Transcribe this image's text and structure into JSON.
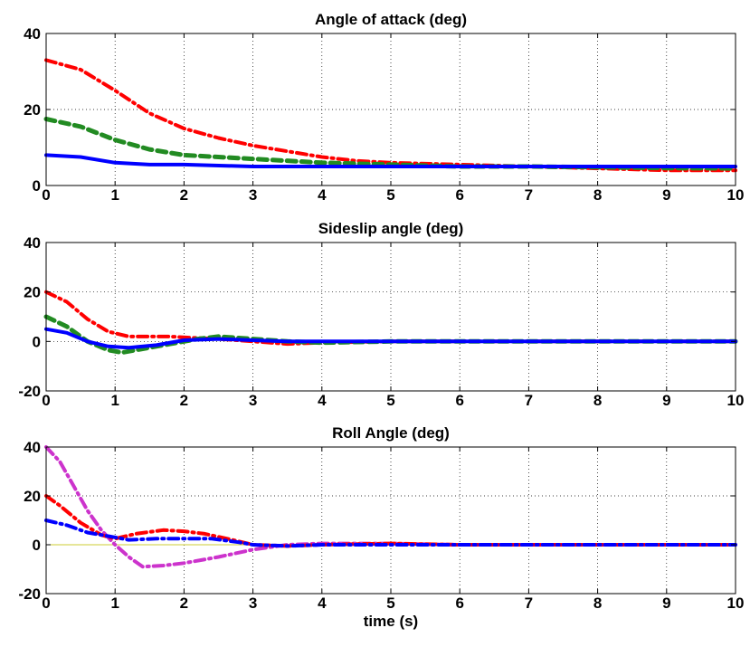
{
  "chart_data": [
    {
      "type": "line",
      "title": "Angle of attack (deg)",
      "xlabel": "",
      "ylabel": "",
      "xlim": [
        0,
        10
      ],
      "ylim": [
        0,
        40
      ],
      "xticks": [
        0,
        1,
        2,
        3,
        4,
        5,
        6,
        7,
        8,
        9,
        10
      ],
      "yticks": [
        0,
        20,
        40
      ],
      "grid": true,
      "series": [
        {
          "color": "#ff0000",
          "style": "dashdot",
          "x": [
            0,
            0.5,
            1,
            1.5,
            2,
            2.5,
            3,
            3.5,
            4,
            4.5,
            5,
            6,
            7,
            8,
            9,
            10
          ],
          "y": [
            33,
            30.5,
            25,
            19,
            15,
            12.5,
            10.5,
            9,
            7.5,
            6.5,
            6,
            5.5,
            5,
            4.5,
            4,
            4
          ]
        },
        {
          "color": "#228b22",
          "style": "dashed",
          "x": [
            0,
            0.5,
            1,
            1.5,
            2,
            2.5,
            3,
            4,
            5,
            6,
            7,
            8,
            9,
            10
          ],
          "y": [
            17.5,
            15.5,
            12,
            9.5,
            8,
            7.5,
            7,
            6,
            5.5,
            5,
            5,
            4.8,
            4.6,
            4.5
          ]
        },
        {
          "color": "#0000ff",
          "style": "solid",
          "x": [
            0,
            0.5,
            1,
            1.5,
            2,
            3,
            4,
            5,
            6,
            7,
            8,
            9,
            10
          ],
          "y": [
            8,
            7.5,
            6,
            5.5,
            5.5,
            5,
            5,
            5,
            5,
            5,
            5,
            5,
            5
          ]
        }
      ]
    },
    {
      "type": "line",
      "title": "Sideslip angle (deg)",
      "xlabel": "",
      "ylabel": "",
      "xlim": [
        0,
        10
      ],
      "ylim": [
        -20,
        40
      ],
      "xticks": [
        0,
        1,
        2,
        3,
        4,
        5,
        6,
        7,
        8,
        9,
        10
      ],
      "yticks": [
        -20,
        0,
        20,
        40
      ],
      "grid": true,
      "series": [
        {
          "color": "#ff0000",
          "style": "dashdot",
          "x": [
            0,
            0.3,
            0.6,
            0.9,
            1.2,
            1.5,
            1.8,
            2.1,
            2.5,
            3,
            3.5,
            4,
            5,
            6,
            7,
            8,
            9,
            10
          ],
          "y": [
            20,
            16,
            9,
            4,
            2,
            2,
            2,
            1.5,
            1,
            0,
            -1,
            -0.5,
            0,
            0,
            0,
            0,
            0,
            0
          ]
        },
        {
          "color": "#228b22",
          "style": "dashed",
          "x": [
            0,
            0.3,
            0.6,
            0.9,
            1.1,
            1.4,
            1.8,
            2.2,
            2.5,
            3,
            3.5,
            4,
            5,
            6,
            7,
            8,
            9,
            10
          ],
          "y": [
            10,
            6,
            0,
            -3.5,
            -4.5,
            -3,
            -1,
            1,
            2,
            1,
            0,
            -0.5,
            0,
            0,
            0,
            0,
            0,
            0
          ]
        },
        {
          "color": "#0000ff",
          "style": "solid",
          "x": [
            0,
            0.3,
            0.6,
            0.9,
            1.2,
            1.6,
            2,
            2.5,
            3,
            3.5,
            4,
            5,
            6,
            7,
            8,
            9,
            10
          ],
          "y": [
            5,
            3.5,
            0,
            -2,
            -2.5,
            -1.5,
            0.5,
            1,
            0.5,
            0,
            0,
            0,
            0,
            0,
            0,
            0,
            0
          ]
        }
      ]
    },
    {
      "type": "line",
      "title": "Roll Angle (deg)",
      "xlabel": "time (s)",
      "ylabel": "",
      "xlim": [
        0,
        10
      ],
      "ylim": [
        -20,
        40
      ],
      "xticks": [
        0,
        1,
        2,
        3,
        4,
        5,
        6,
        7,
        8,
        9,
        10
      ],
      "yticks": [
        -20,
        0,
        20,
        40
      ],
      "grid": true,
      "series": [
        {
          "color": "#cccc33",
          "style": "solid",
          "x": [
            0,
            10
          ],
          "y": [
            0,
            0
          ]
        },
        {
          "color": "#cc33cc",
          "style": "dashdot",
          "x": [
            0,
            0.2,
            0.4,
            0.6,
            0.8,
            1,
            1.2,
            1.4,
            1.7,
            2,
            2.5,
            3,
            3.5,
            4,
            4.5,
            5,
            6,
            7,
            8,
            9,
            10
          ],
          "y": [
            40,
            34,
            24,
            14,
            6,
            0,
            -5,
            -9,
            -8.5,
            -7.5,
            -5,
            -2,
            0,
            0.5,
            0.5,
            0.5,
            0,
            0,
            0,
            0,
            0
          ]
        },
        {
          "color": "#ff0000",
          "style": "dashdot",
          "x": [
            0,
            0.2,
            0.5,
            0.8,
            1,
            1.3,
            1.7,
            2,
            2.3,
            2.7,
            3,
            3.5,
            4,
            5,
            6,
            7,
            8,
            9,
            10
          ],
          "y": [
            20,
            16,
            9,
            4,
            2.5,
            4.5,
            6,
            5.5,
            4.5,
            2,
            0,
            -0.5,
            0,
            0.5,
            0,
            0,
            0,
            0,
            0
          ]
        },
        {
          "color": "#0000ff",
          "style": "dashdot",
          "x": [
            0,
            0.3,
            0.6,
            0.9,
            1.2,
            1.6,
            2,
            2.4,
            2.8,
            3,
            3.5,
            4,
            5,
            6,
            7,
            8,
            9,
            10
          ],
          "y": [
            10,
            8,
            5,
            3.5,
            2,
            2.5,
            2.5,
            2.5,
            1,
            0,
            -0.5,
            0,
            0,
            0,
            0,
            0,
            0,
            0
          ]
        }
      ]
    }
  ]
}
